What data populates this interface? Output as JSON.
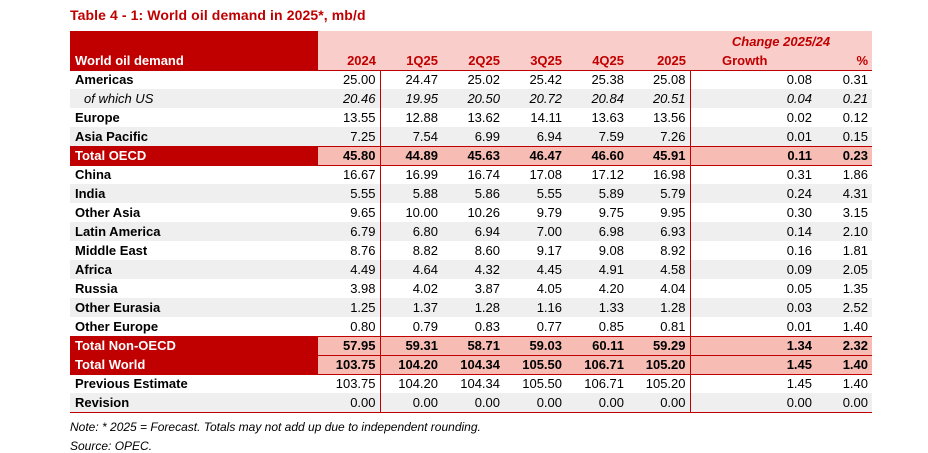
{
  "title": "Table 4 - 1: World oil demand in 2025*, mb/d",
  "note": "Note: * 2025 = Forecast. Totals may not add up due to independent rounding.",
  "source": "Source: OPEC.",
  "colors": {
    "accent": "#c00000",
    "header_pink": "#f8cdca",
    "total_pink": "#f7bdb4",
    "stripe": "#efefef"
  },
  "table": {
    "row_header": "World oil demand",
    "change_header": "Change 2025/24",
    "columns": [
      "2024",
      "1Q25",
      "2Q25",
      "3Q25",
      "4Q25",
      "2025",
      "Growth",
      "%"
    ],
    "rows": [
      {
        "label": "Americas",
        "kind": "data",
        "shaded": false,
        "values": [
          "25.00",
          "24.47",
          "25.02",
          "25.42",
          "25.38",
          "25.08",
          "0.08",
          "0.31"
        ]
      },
      {
        "label": "of which US",
        "kind": "sub",
        "shaded": true,
        "values": [
          "20.46",
          "19.95",
          "20.50",
          "20.72",
          "20.84",
          "20.51",
          "0.04",
          "0.21"
        ]
      },
      {
        "label": "Europe",
        "kind": "data",
        "shaded": false,
        "values": [
          "13.55",
          "12.88",
          "13.62",
          "14.11",
          "13.63",
          "13.56",
          "0.02",
          "0.12"
        ]
      },
      {
        "label": "Asia Pacific",
        "kind": "data",
        "shaded": true,
        "values": [
          "7.25",
          "7.54",
          "6.99",
          "6.94",
          "7.59",
          "7.26",
          "0.01",
          "0.15"
        ]
      },
      {
        "label": "Total OECD",
        "kind": "total",
        "shaded": false,
        "values": [
          "45.80",
          "44.89",
          "45.63",
          "46.47",
          "46.60",
          "45.91",
          "0.11",
          "0.23"
        ]
      },
      {
        "label": "China",
        "kind": "data",
        "shaded": false,
        "values": [
          "16.67",
          "16.99",
          "16.74",
          "17.08",
          "17.12",
          "16.98",
          "0.31",
          "1.86"
        ]
      },
      {
        "label": "India",
        "kind": "data",
        "shaded": true,
        "values": [
          "5.55",
          "5.88",
          "5.86",
          "5.55",
          "5.89",
          "5.79",
          "0.24",
          "4.31"
        ]
      },
      {
        "label": "Other Asia",
        "kind": "data",
        "shaded": false,
        "values": [
          "9.65",
          "10.00",
          "10.26",
          "9.79",
          "9.75",
          "9.95",
          "0.30",
          "3.15"
        ]
      },
      {
        "label": "Latin America",
        "kind": "data",
        "shaded": true,
        "values": [
          "6.79",
          "6.80",
          "6.94",
          "7.00",
          "6.98",
          "6.93",
          "0.14",
          "2.10"
        ]
      },
      {
        "label": "Middle East",
        "kind": "data",
        "shaded": false,
        "values": [
          "8.76",
          "8.82",
          "8.60",
          "9.17",
          "9.08",
          "8.92",
          "0.16",
          "1.81"
        ]
      },
      {
        "label": "Africa",
        "kind": "data",
        "shaded": true,
        "values": [
          "4.49",
          "4.64",
          "4.32",
          "4.45",
          "4.91",
          "4.58",
          "0.09",
          "2.05"
        ]
      },
      {
        "label": "Russia",
        "kind": "data",
        "shaded": false,
        "values": [
          "3.98",
          "4.02",
          "3.87",
          "4.05",
          "4.20",
          "4.04",
          "0.05",
          "1.35"
        ]
      },
      {
        "label": "Other Eurasia",
        "kind": "data",
        "shaded": true,
        "values": [
          "1.25",
          "1.37",
          "1.28",
          "1.16",
          "1.33",
          "1.28",
          "0.03",
          "2.52"
        ]
      },
      {
        "label": "Other Europe",
        "kind": "data",
        "shaded": false,
        "values": [
          "0.80",
          "0.79",
          "0.83",
          "0.77",
          "0.85",
          "0.81",
          "0.01",
          "1.40"
        ]
      },
      {
        "label": "Total Non-OECD",
        "kind": "total",
        "shaded": false,
        "values": [
          "57.95",
          "59.31",
          "58.71",
          "59.03",
          "60.11",
          "59.29",
          "1.34",
          "2.32"
        ]
      },
      {
        "label": "Total World",
        "kind": "total",
        "shaded": false,
        "values": [
          "103.75",
          "104.20",
          "104.34",
          "105.50",
          "106.71",
          "105.20",
          "1.45",
          "1.40"
        ]
      },
      {
        "label": "Previous Estimate",
        "kind": "data",
        "shaded": false,
        "values": [
          "103.75",
          "104.20",
          "104.34",
          "105.50",
          "106.71",
          "105.20",
          "1.45",
          "1.40"
        ]
      },
      {
        "label": "Revision",
        "kind": "data",
        "shaded": true,
        "values": [
          "0.00",
          "0.00",
          "0.00",
          "0.00",
          "0.00",
          "0.00",
          "0.00",
          "0.00"
        ]
      }
    ]
  }
}
